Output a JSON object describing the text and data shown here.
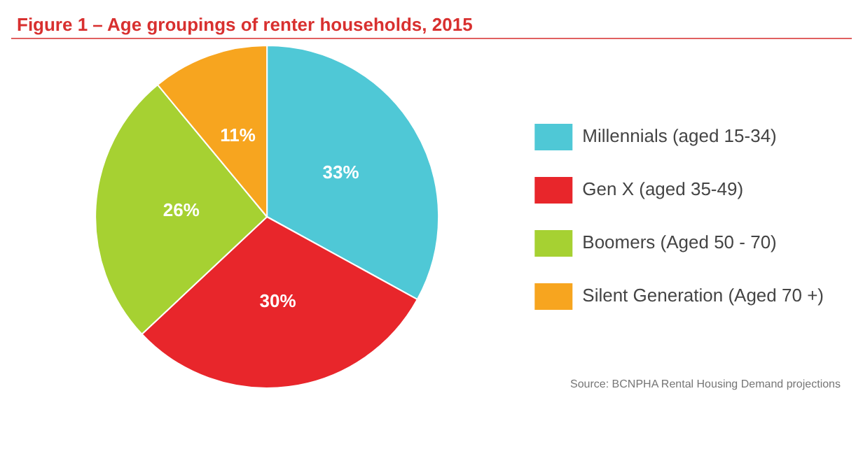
{
  "chart_data": {
    "type": "pie",
    "title": "Figure 1 – Age groupings of renter households, 2015",
    "categories": [
      "Millennials (aged 15-34)",
      "Gen X (aged 35-49)",
      "Boomers (Aged 50 - 70)",
      "Silent Generation (Aged 70 +)"
    ],
    "values": [
      33,
      30,
      26,
      11
    ],
    "colors": [
      "#4fc8d6",
      "#e8262b",
      "#a6d132",
      "#f7a51f"
    ],
    "value_labels": [
      "33%",
      "30%",
      "26%",
      "11%"
    ],
    "legend": "right",
    "annotations": [
      "Source: BCNPHA Rental Housing Demand projections"
    ]
  }
}
